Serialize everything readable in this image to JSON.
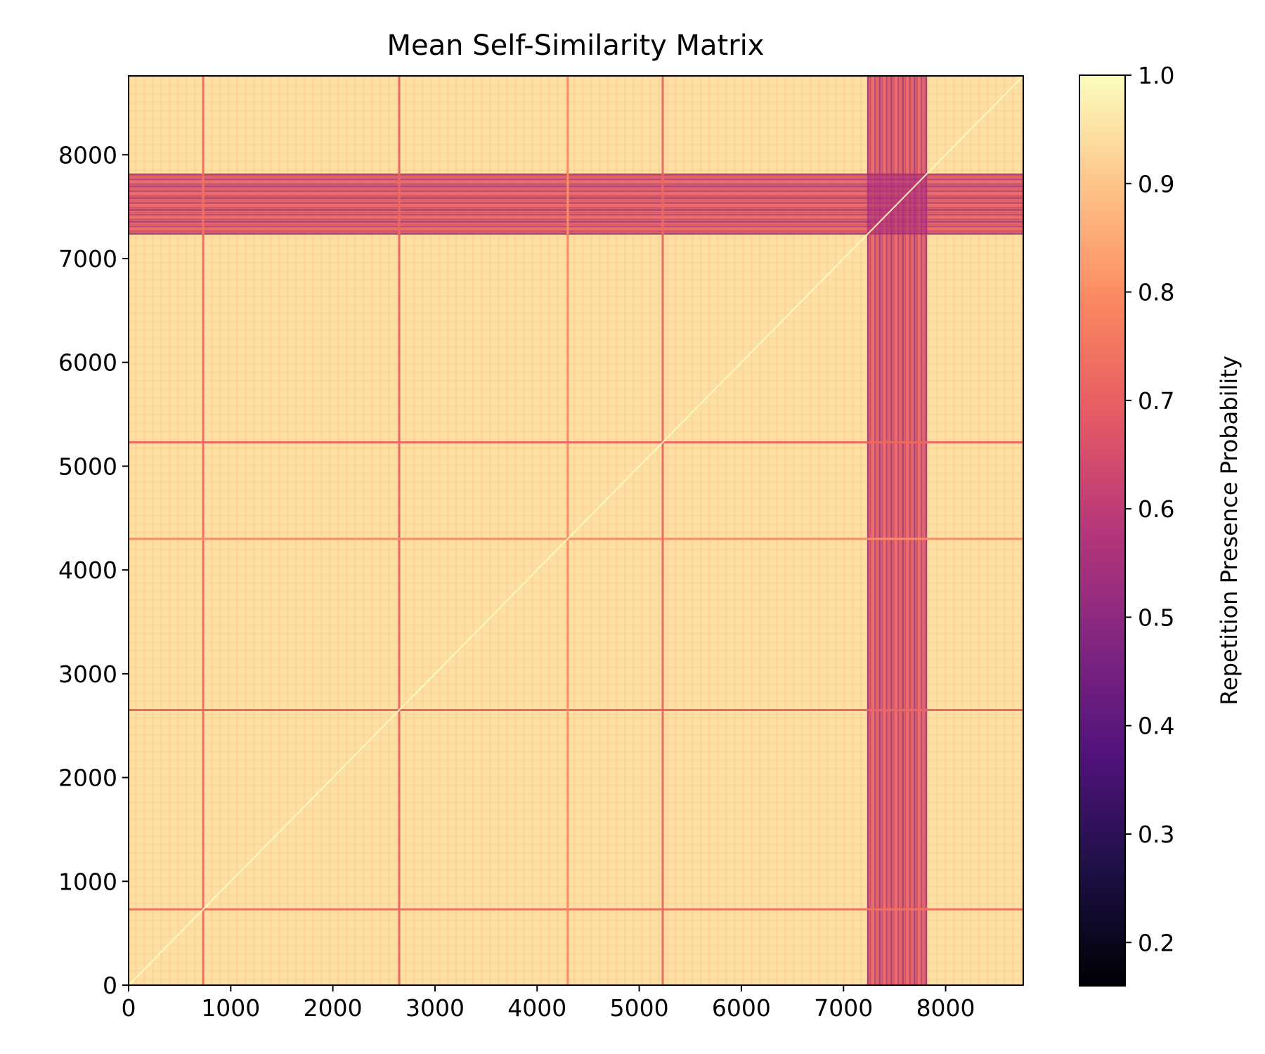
{
  "chart_data": {
    "type": "heatmap",
    "title": "Mean Self-Similarity Matrix",
    "xlabel": "",
    "ylabel": "",
    "xlim": [
      0,
      8760
    ],
    "ylim": [
      0,
      8760
    ],
    "x_ticks": [
      "0",
      "1000",
      "2000",
      "3000",
      "4000",
      "5000",
      "6000",
      "7000",
      "8000"
    ],
    "y_ticks": [
      "0",
      "1000",
      "2000",
      "3000",
      "4000",
      "5000",
      "6000",
      "7000",
      "8000"
    ],
    "x_tick_values": [
      0,
      1000,
      2000,
      3000,
      4000,
      5000,
      6000,
      7000,
      8000
    ],
    "y_tick_values": [
      0,
      1000,
      2000,
      3000,
      4000,
      5000,
      6000,
      7000,
      8000
    ],
    "colormap": "magma",
    "colorbar": {
      "label": "Repetition Presence Probability",
      "range": [
        0.16,
        1.0
      ],
      "ticks": [
        "0.2",
        "0.3",
        "0.4",
        "0.5",
        "0.6",
        "0.7",
        "0.8",
        "0.9",
        "1.0"
      ],
      "tick_values": [
        0.2,
        0.3,
        0.4,
        0.5,
        0.6,
        0.7,
        0.8,
        0.9,
        1.0
      ]
    },
    "background_value": 0.95,
    "boundary_lines": [
      {
        "position": 730,
        "value": 0.74
      },
      {
        "position": 2650,
        "value": 0.72
      },
      {
        "position": 4300,
        "value": 0.8
      },
      {
        "position": 5230,
        "value": 0.72
      }
    ],
    "low_similarity_band": {
      "start": 7230,
      "end": 7820,
      "value": 0.72,
      "min_value": 0.45
    },
    "diagonal_value": 1.0
  }
}
